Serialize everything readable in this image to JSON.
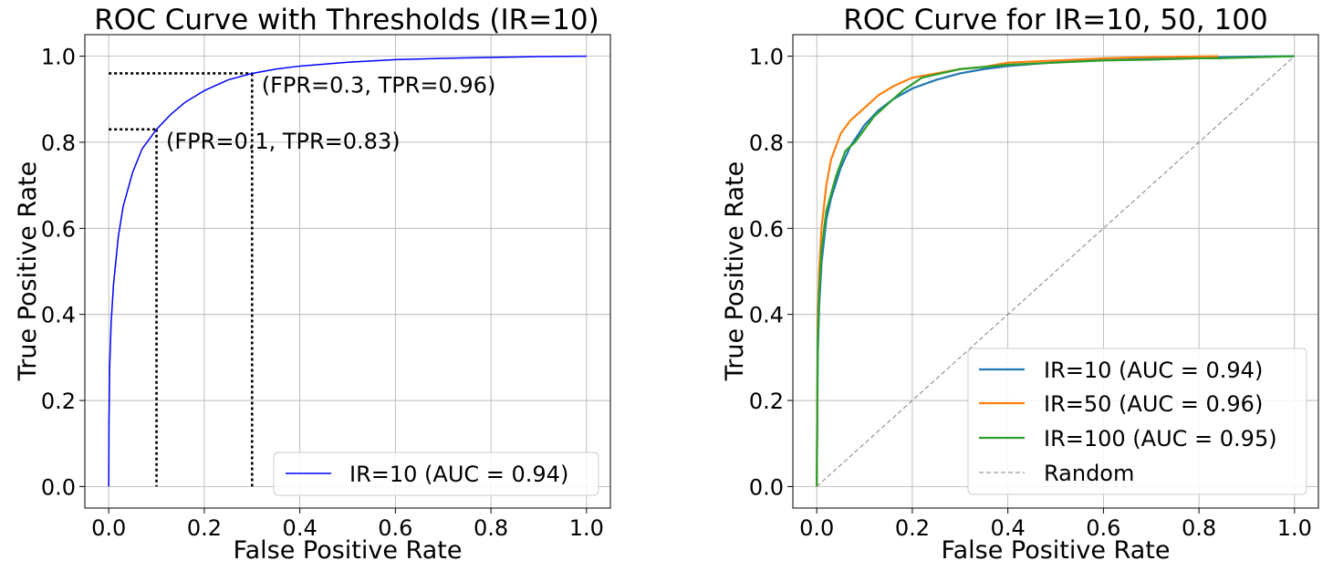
{
  "chart_data": [
    {
      "type": "line",
      "title": "ROC Curve with Thresholds (IR=10)",
      "xlabel": "False Positive Rate",
      "ylabel": "True Positive Rate",
      "xlim": [
        -0.05,
        1.05
      ],
      "ylim": [
        -0.05,
        1.05
      ],
      "xticks": [
        "0.0",
        "0.2",
        "0.4",
        "0.6",
        "0.8",
        "1.0"
      ],
      "yticks": [
        "0.0",
        "0.2",
        "0.4",
        "0.6",
        "0.8",
        "1.0"
      ],
      "grid": true,
      "legend_position": "lower-right",
      "series": [
        {
          "name": "IR=10 (AUC = 0.94)",
          "color": "#0000ff",
          "x": [
            0,
            0.0005,
            0.002,
            0.005,
            0.01,
            0.02,
            0.03,
            0.05,
            0.07,
            0.1,
            0.13,
            0.16,
            0.2,
            0.25,
            0.3,
            0.35,
            0.4,
            0.5,
            0.6,
            0.7,
            0.8,
            0.9,
            1.0
          ],
          "y": [
            0,
            0.15,
            0.28,
            0.38,
            0.47,
            0.58,
            0.65,
            0.73,
            0.785,
            0.83,
            0.865,
            0.893,
            0.92,
            0.945,
            0.96,
            0.97,
            0.977,
            0.986,
            0.992,
            0.995,
            0.997,
            0.999,
            1.0
          ]
        }
      ],
      "threshold_lines": [
        {
          "fpr": 0.1,
          "tpr": 0.83
        },
        {
          "fpr": 0.3,
          "tpr": 0.96
        }
      ],
      "annotations": [
        {
          "text": "(FPR=0.3, TPR=0.96)",
          "x": 0.32,
          "y": 0.915
        },
        {
          "text": "(FPR=0.1, TPR=0.83)",
          "x": 0.12,
          "y": 0.785
        }
      ]
    },
    {
      "type": "line",
      "title": "ROC Curve for IR=10, 50, 100",
      "xlabel": "False Positive Rate",
      "ylabel": "True Positive Rate",
      "xlim": [
        -0.05,
        1.05
      ],
      "ylim": [
        -0.05,
        1.05
      ],
      "xticks": [
        "0.0",
        "0.2",
        "0.4",
        "0.6",
        "0.8",
        "1.0"
      ],
      "yticks": [
        "0.0",
        "0.2",
        "0.4",
        "0.6",
        "0.8",
        "1.0"
      ],
      "grid": true,
      "legend_position": "lower-right",
      "series": [
        {
          "name": "IR=10 (AUC = 0.94)",
          "color": "#1f77b4",
          "x": [
            0,
            0.002,
            0.005,
            0.01,
            0.02,
            0.03,
            0.05,
            0.07,
            0.1,
            0.13,
            0.16,
            0.2,
            0.25,
            0.3,
            0.35,
            0.4,
            0.5,
            0.6,
            0.7,
            0.8,
            0.9,
            1.0
          ],
          "y": [
            0,
            0.3,
            0.42,
            0.52,
            0.62,
            0.67,
            0.74,
            0.79,
            0.84,
            0.875,
            0.9,
            0.925,
            0.945,
            0.96,
            0.97,
            0.977,
            0.986,
            0.992,
            0.995,
            0.997,
            0.999,
            1.0
          ]
        },
        {
          "name": "IR=50 (AUC = 0.96)",
          "color": "#ff7f0e",
          "x": [
            0,
            0.002,
            0.005,
            0.01,
            0.02,
            0.03,
            0.05,
            0.07,
            0.1,
            0.13,
            0.16,
            0.2,
            0.25,
            0.3,
            0.35,
            0.4,
            0.5,
            0.6,
            0.7,
            0.84
          ],
          "y": [
            0,
            0.38,
            0.5,
            0.6,
            0.7,
            0.76,
            0.82,
            0.85,
            0.88,
            0.91,
            0.93,
            0.95,
            0.96,
            0.97,
            0.975,
            0.985,
            0.99,
            0.995,
            0.998,
            1.0
          ]
        },
        {
          "name": "IR=100 (AUC = 0.95)",
          "color": "#2ca02c",
          "x": [
            0,
            0.002,
            0.005,
            0.01,
            0.02,
            0.03,
            0.04,
            0.05,
            0.06,
            0.08,
            0.1,
            0.12,
            0.15,
            0.18,
            0.22,
            0.26,
            0.3,
            0.4,
            0.5,
            0.6,
            0.7,
            0.8,
            0.84,
            1.0
          ],
          "y": [
            0,
            0.34,
            0.45,
            0.55,
            0.64,
            0.68,
            0.72,
            0.75,
            0.78,
            0.8,
            0.83,
            0.86,
            0.89,
            0.92,
            0.95,
            0.96,
            0.97,
            0.98,
            0.985,
            0.99,
            0.992,
            0.995,
            0.995,
            1.0
          ]
        },
        {
          "name": "Random",
          "color": "#808080",
          "dashed": true,
          "x": [
            0,
            1
          ],
          "y": [
            0,
            1
          ]
        }
      ]
    }
  ]
}
